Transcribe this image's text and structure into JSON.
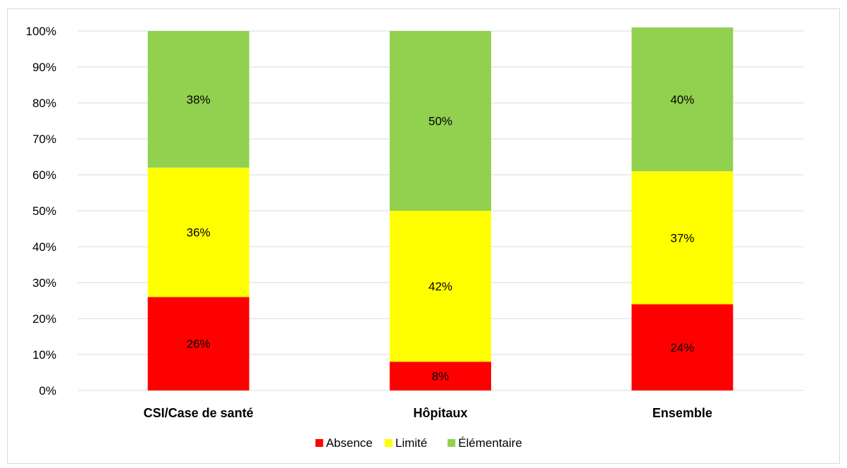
{
  "chart_data": {
    "type": "bar",
    "stacked": true,
    "categories": [
      "CSI/Case de santé",
      "Hôpitaux",
      "Ensemble"
    ],
    "series": [
      {
        "name": "Absence",
        "values": [
          26,
          8,
          24
        ],
        "labels": [
          "26%",
          "8%",
          "24%"
        ],
        "color": "#ff0000"
      },
      {
        "name": "Limité",
        "values": [
          36,
          42,
          37
        ],
        "labels": [
          "36%",
          "42%",
          "37%"
        ],
        "color": "#ffff00"
      },
      {
        "name": "Élémentaire",
        "values": [
          38,
          50,
          40
        ],
        "labels": [
          "38%",
          "50%",
          "40%"
        ],
        "color": "#92d050"
      }
    ],
    "ylim": [
      0,
      100
    ],
    "yticks": [
      "0%",
      "10%",
      "20%",
      "30%",
      "40%",
      "50%",
      "60%",
      "70%",
      "80%",
      "90%",
      "100%"
    ],
    "grid": true,
    "legend_position": "bottom",
    "title": "",
    "xlabel": "",
    "ylabel": ""
  }
}
